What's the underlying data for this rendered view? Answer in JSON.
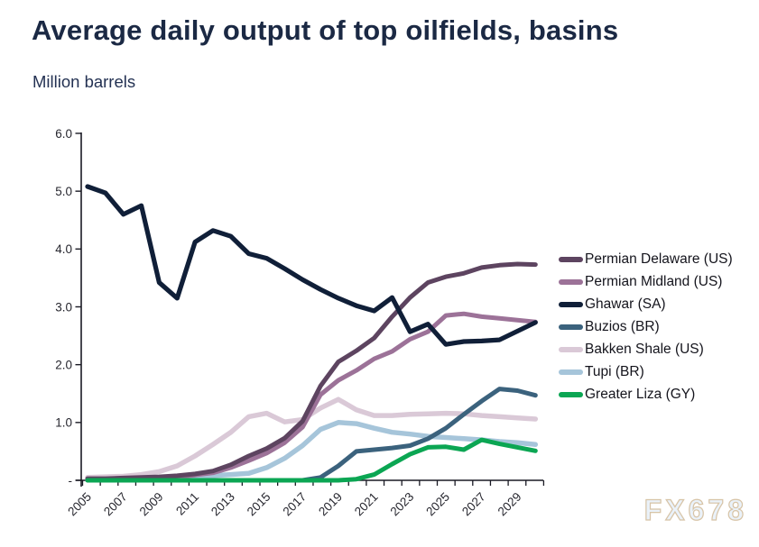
{
  "page": {
    "title": "Average daily output of top oilfields, basins",
    "subtitle": "Million barrels",
    "watermark": "FX678"
  },
  "colors": {
    "title_text": "#1b2944",
    "axis": "#1a1a24",
    "watermark_fill": "#eaf2fa",
    "watermark_outline": "#d7c4a7"
  },
  "chart_data": {
    "type": "line",
    "title": "Average daily output of top oilfields, basins",
    "ylabel": "Million barrels",
    "ylim": [
      0,
      6
    ],
    "grid": false,
    "legend_position": "right",
    "years": [
      2005,
      2006,
      2007,
      2008,
      2009,
      2010,
      2011,
      2012,
      2013,
      2014,
      2015,
      2016,
      2017,
      2018,
      2019,
      2020,
      2021,
      2022,
      2023,
      2024,
      2025,
      2026,
      2027,
      2028,
      2029,
      2030
    ],
    "x_tick_labels": [
      "2005",
      "2007",
      "2009",
      "2011",
      "2013",
      "2015",
      "2017",
      "2019",
      "2021",
      "2023",
      "2025",
      "2027",
      "2029"
    ],
    "y_ticks": [
      {
        "v": 6,
        "label": "6.0"
      },
      {
        "v": 5,
        "label": "5.0"
      },
      {
        "v": 4,
        "label": "4.0"
      },
      {
        "v": 3,
        "label": "3.0"
      },
      {
        "v": 2,
        "label": "2.0"
      },
      {
        "v": 1,
        "label": "1.0"
      },
      {
        "v": 0,
        "label": "-"
      }
    ],
    "series": [
      {
        "name": "Permian Delaware (US)",
        "color": "#5d4460",
        "width": 5,
        "values": [
          0.03,
          0.03,
          0.04,
          0.05,
          0.06,
          0.08,
          0.11,
          0.16,
          0.27,
          0.42,
          0.55,
          0.73,
          1.02,
          1.63,
          2.05,
          2.24,
          2.46,
          2.83,
          3.16,
          3.42,
          3.52,
          3.58,
          3.68,
          3.72,
          3.74,
          3.73
        ]
      },
      {
        "name": "Permian Midland (US)",
        "color": "#9c7298",
        "width": 5,
        "values": [
          0.02,
          0.02,
          0.03,
          0.04,
          0.05,
          0.06,
          0.09,
          0.13,
          0.22,
          0.34,
          0.47,
          0.65,
          0.92,
          1.48,
          1.73,
          1.9,
          2.1,
          2.23,
          2.44,
          2.57,
          2.85,
          2.88,
          2.83,
          2.8,
          2.77,
          2.74
        ]
      },
      {
        "name": "Ghawar (SA)",
        "color": "#101f38",
        "width": 5.2,
        "values": [
          5.08,
          4.97,
          4.6,
          4.75,
          3.42,
          3.15,
          4.12,
          4.32,
          4.22,
          3.92,
          3.84,
          3.66,
          3.47,
          3.3,
          3.15,
          3.02,
          2.93,
          3.16,
          2.57,
          2.7,
          2.35,
          2.4,
          2.41,
          2.43,
          2.58,
          2.73
        ]
      },
      {
        "name": "Buzios (BR)",
        "color": "#3b627d",
        "width": 5,
        "values": [
          0,
          0,
          0,
          0,
          0,
          0,
          0,
          0,
          0,
          0,
          0,
          0,
          0,
          0.05,
          0.25,
          0.5,
          0.53,
          0.56,
          0.6,
          0.72,
          0.9,
          1.14,
          1.37,
          1.58,
          1.55,
          1.47
        ]
      },
      {
        "name": "Bakken Shale (US)",
        "color": "#dac9d7",
        "width": 5.5,
        "values": [
          0.05,
          0.06,
          0.07,
          0.1,
          0.15,
          0.25,
          0.42,
          0.62,
          0.83,
          1.1,
          1.16,
          1.01,
          1.05,
          1.25,
          1.4,
          1.22,
          1.12,
          1.12,
          1.14,
          1.15,
          1.16,
          1.15,
          1.12,
          1.1,
          1.08,
          1.06
        ]
      },
      {
        "name": "Tupi (BR)",
        "color": "#a6c5da",
        "width": 5.5,
        "values": [
          0.01,
          0.01,
          0.02,
          0.02,
          0.03,
          0.05,
          0.06,
          0.08,
          0.1,
          0.12,
          0.22,
          0.38,
          0.6,
          0.88,
          1.0,
          0.98,
          0.9,
          0.83,
          0.8,
          0.76,
          0.74,
          0.72,
          0.7,
          0.67,
          0.65,
          0.62
        ]
      },
      {
        "name": "Greater Liza (GY)",
        "color": "#0ba653",
        "width": 5,
        "values": [
          0,
          0,
          0,
          0,
          0,
          0,
          0,
          0,
          0,
          0,
          0,
          0,
          0,
          0,
          0,
          0.02,
          0.1,
          0.28,
          0.45,
          0.57,
          0.58,
          0.53,
          0.7,
          0.63,
          0.57,
          0.51
        ]
      }
    ],
    "draw_order": [
      "Bakken Shale (US)",
      "Tupi (BR)",
      "Permian Midland (US)",
      "Permian Delaware (US)",
      "Buzios (BR)",
      "Greater Liza (GY)",
      "Ghawar (SA)"
    ]
  }
}
